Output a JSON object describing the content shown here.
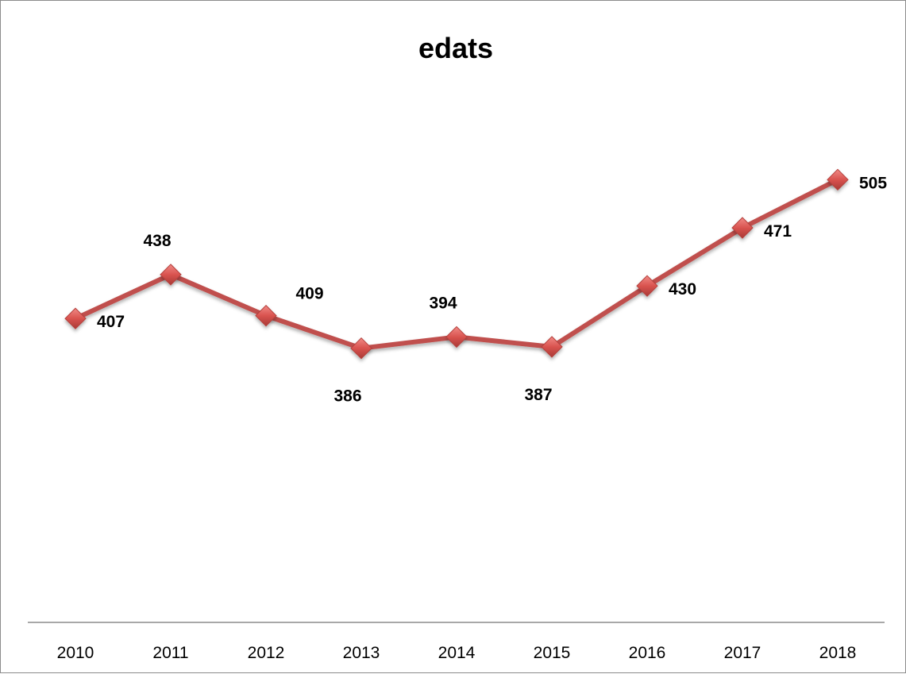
{
  "chart_data": {
    "type": "line",
    "title": "edats",
    "xlabel": "",
    "ylabel": "",
    "categories": [
      "2010",
      "2011",
      "2012",
      "2013",
      "2014",
      "2015",
      "2016",
      "2017",
      "2018"
    ],
    "series": [
      {
        "values": [
          407,
          438,
          409,
          386,
          394,
          387,
          430,
          471,
          505
        ],
        "color": "#c0504d",
        "marker": "diamond"
      }
    ],
    "data_labels": [
      "407",
      "438",
      "409",
      "386",
      "394",
      "387",
      "430",
      "471",
      "505"
    ],
    "grid": false,
    "legend": "none"
  }
}
